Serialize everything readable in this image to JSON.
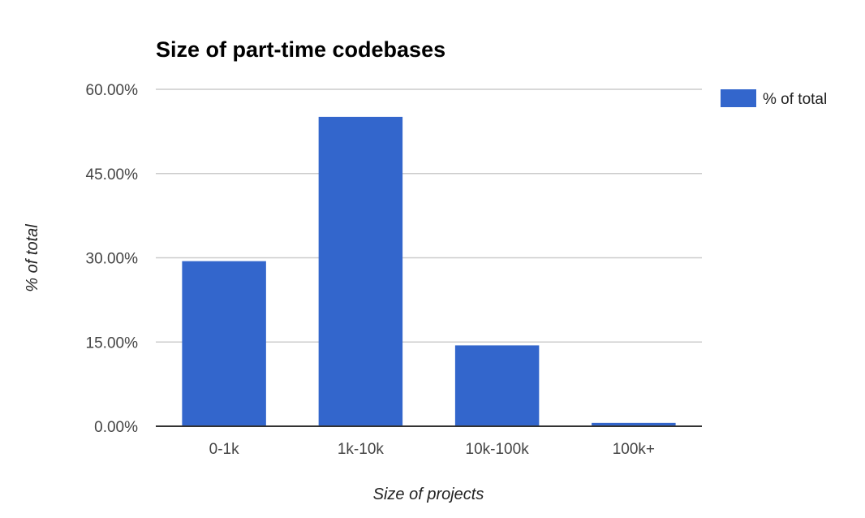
{
  "chart_data": {
    "type": "bar",
    "title": "Size of part-time codebases",
    "xlabel": "Size of projects",
    "ylabel": "% of total",
    "categories": [
      "0-1k",
      "1k-10k",
      "10k-100k",
      "100k+"
    ],
    "series": [
      {
        "name": "% of total",
        "values": [
          29.4,
          55.1,
          14.4,
          0.6
        ]
      }
    ],
    "ylim": [
      0,
      60
    ],
    "yticks": [
      0,
      15,
      30,
      45,
      60
    ],
    "ytick_labels": [
      "0.00%",
      "15.00%",
      "30.00%",
      "45.00%",
      "60.00%"
    ],
    "grid": true,
    "legend_position": "right",
    "colors": {
      "bar": "#3366cc",
      "grid": "#cccccc",
      "axis": "#333333"
    }
  }
}
